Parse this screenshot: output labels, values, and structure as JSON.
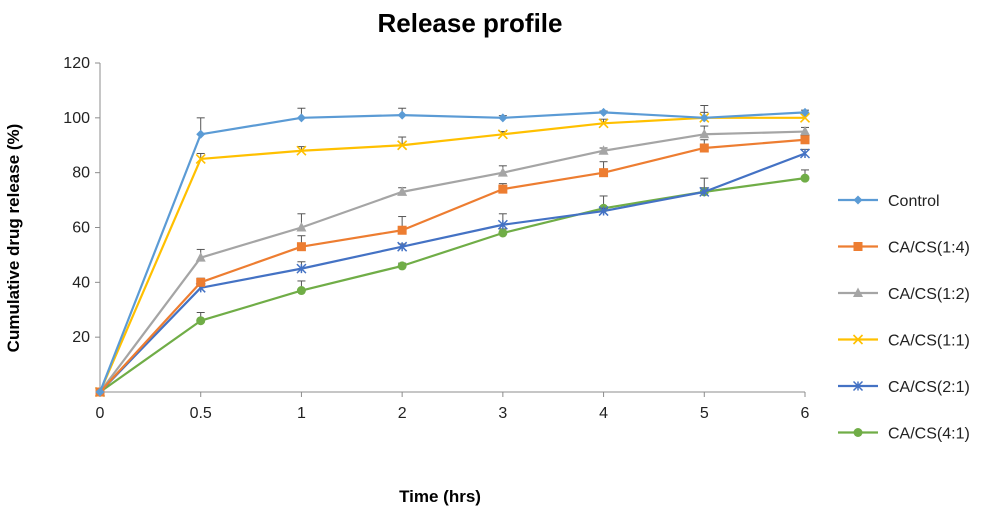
{
  "chart_data": {
    "type": "line",
    "title": "Release profile",
    "xlabel": "Time (hrs)",
    "ylabel": "Cumulative drug release (%)",
    "x": [
      0,
      0.5,
      1,
      2,
      3,
      4,
      5,
      6
    ],
    "x_tick_labels": [
      "0",
      "0.5",
      "1",
      "2",
      "3",
      "4",
      "5",
      "6"
    ],
    "ylim": [
      0,
      120
    ],
    "y_ticks": [
      20,
      40,
      60,
      80,
      100,
      120
    ],
    "grid": false,
    "legend_position": "right",
    "series": [
      {
        "name": "Control",
        "color": "#5b9bd5",
        "marker": "diamond",
        "values": [
          0,
          94,
          100,
          101,
          100,
          102,
          100,
          102
        ],
        "errors": [
          0,
          6,
          3.5,
          2.5,
          0.8,
          0.5,
          4.5,
          0.8
        ]
      },
      {
        "name": "CA/CS(1:4)",
        "color": "#ed7d31",
        "marker": "square",
        "values": [
          0,
          40,
          53,
          59,
          74,
          80,
          89,
          92
        ],
        "errors": [
          0,
          1.5,
          4,
          5,
          2,
          4,
          3,
          1.5
        ]
      },
      {
        "name": "CA/CS(1:2)",
        "color": "#a5a5a5",
        "marker": "triangle",
        "values": [
          0,
          49,
          60,
          73,
          80,
          88,
          94,
          95
        ],
        "errors": [
          0,
          3,
          5,
          1.5,
          2.5,
          1,
          3,
          1.5
        ]
      },
      {
        "name": "CA/CS(1:1)",
        "color": "#ffc000",
        "marker": "x",
        "values": [
          0,
          85,
          88,
          90,
          94,
          98,
          100,
          100
        ],
        "errors": [
          0,
          2,
          1.5,
          3,
          1,
          1.5,
          2,
          1.5
        ]
      },
      {
        "name": "CA/CS(2:1)",
        "color": "#4472c4",
        "marker": "star",
        "values": [
          0,
          38,
          45,
          53,
          61,
          66,
          73,
          87
        ],
        "errors": [
          0,
          1.5,
          2.5,
          1,
          4,
          1,
          5,
          1.5
        ]
      },
      {
        "name": "CA/CS(4:1)",
        "color": "#70ad47",
        "marker": "circle",
        "values": [
          0,
          26,
          37,
          46,
          58,
          67,
          73,
          78
        ],
        "errors": [
          0,
          3,
          3.5,
          1,
          1.5,
          4.5,
          1.5,
          3
        ]
      }
    ]
  }
}
